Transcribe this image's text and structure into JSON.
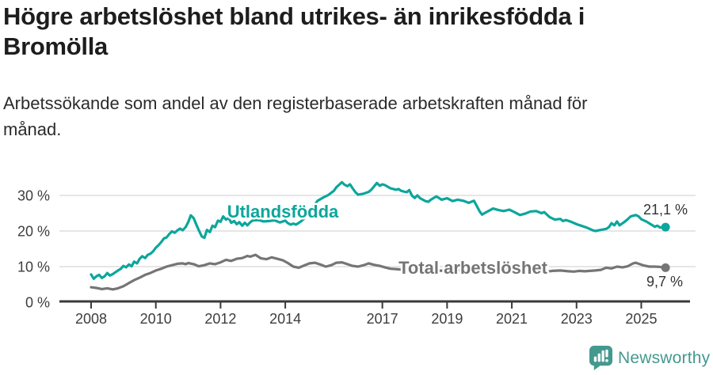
{
  "header": {
    "title": "Högre arbetslöshet bland utrikes- än inrikesfödda i Bromölla",
    "subtitle": "Arbetssökande som andel av den registerbaserade arbetskraften månad för månad."
  },
  "branding": {
    "logo_text": "Newsworthy",
    "logo_color": "#44998f",
    "logo_icon": "speech-bubble-bar-chart-icon"
  },
  "colors": {
    "foreign_born_line": "#0ca69c",
    "total_line": "#757575",
    "gridline": "#d8d8d8",
    "axis": "#3a3a3a",
    "text_dark": "#1d1d1d"
  },
  "chart_data": {
    "type": "line",
    "title": "Högre arbetslöshet bland utrikes- än inrikesfödda i Bromölla",
    "xlabel": "",
    "ylabel": "",
    "unit": "%",
    "grid": "horizontal",
    "legend_position": "inline-labels",
    "xlim": [
      2007.6,
      2026.5
    ],
    "ylim": [
      0,
      35
    ],
    "x_ticks": [
      2008,
      2010,
      2012,
      2014,
      2017,
      2019,
      2021,
      2023,
      2025
    ],
    "x_tick_labels": [
      "2008",
      "2010",
      "2012",
      "2014",
      "2017",
      "2019",
      "2021",
      "2023",
      "2025"
    ],
    "y_ticks": [
      0,
      10,
      20,
      30
    ],
    "y_tick_labels": [
      "0 %",
      "10 %",
      "20 %",
      "30 %"
    ],
    "series": [
      {
        "name": "Utlandsfödda",
        "color": "#0ca69c",
        "end_value": 21.1,
        "end_label": "21,1 %",
        "points": [
          [
            2008.0,
            7.8
          ],
          [
            2008.08,
            6.6
          ],
          [
            2008.17,
            7.3
          ],
          [
            2008.25,
            7.7
          ],
          [
            2008.33,
            6.8
          ],
          [
            2008.42,
            7.3
          ],
          [
            2008.5,
            8.2
          ],
          [
            2008.58,
            7.5
          ],
          [
            2008.67,
            7.9
          ],
          [
            2008.75,
            8.4
          ],
          [
            2008.83,
            8.9
          ],
          [
            2008.92,
            9.4
          ],
          [
            2009.0,
            10.2
          ],
          [
            2009.08,
            9.8
          ],
          [
            2009.17,
            10.6
          ],
          [
            2009.25,
            10.1
          ],
          [
            2009.33,
            11.4
          ],
          [
            2009.42,
            10.9
          ],
          [
            2009.5,
            12.2
          ],
          [
            2009.58,
            12.9
          ],
          [
            2009.67,
            12.4
          ],
          [
            2009.75,
            13.3
          ],
          [
            2009.83,
            13.6
          ],
          [
            2009.92,
            14.3
          ],
          [
            2010.0,
            15.3
          ],
          [
            2010.08,
            16.0
          ],
          [
            2010.17,
            16.9
          ],
          [
            2010.25,
            17.9
          ],
          [
            2010.33,
            18.2
          ],
          [
            2010.42,
            19.2
          ],
          [
            2010.5,
            19.9
          ],
          [
            2010.58,
            19.5
          ],
          [
            2010.67,
            20.2
          ],
          [
            2010.75,
            20.7
          ],
          [
            2010.83,
            20.2
          ],
          [
            2010.92,
            21.1
          ],
          [
            2011.0,
            22.5
          ],
          [
            2011.08,
            24.4
          ],
          [
            2011.17,
            23.6
          ],
          [
            2011.25,
            21.8
          ],
          [
            2011.33,
            20.2
          ],
          [
            2011.42,
            18.5
          ],
          [
            2011.5,
            18.1
          ],
          [
            2011.58,
            20.3
          ],
          [
            2011.67,
            19.7
          ],
          [
            2011.75,
            21.5
          ],
          [
            2011.83,
            21.1
          ],
          [
            2011.92,
            22.9
          ],
          [
            2012.0,
            22.6
          ],
          [
            2012.08,
            24.1
          ],
          [
            2012.17,
            23.2
          ],
          [
            2012.25,
            23.7
          ],
          [
            2012.33,
            22.3
          ],
          [
            2012.42,
            22.8
          ],
          [
            2012.5,
            21.9
          ],
          [
            2012.58,
            22.5
          ],
          [
            2012.67,
            21.5
          ],
          [
            2012.75,
            22.3
          ],
          [
            2012.83,
            21.6
          ],
          [
            2012.92,
            22.5
          ],
          [
            2013.0,
            23.0
          ],
          [
            2013.17,
            23.1
          ],
          [
            2013.33,
            22.7
          ],
          [
            2013.5,
            22.8
          ],
          [
            2013.67,
            23.0
          ],
          [
            2013.83,
            22.4
          ],
          [
            2014.0,
            22.9
          ],
          [
            2014.08,
            22.2
          ],
          [
            2014.17,
            21.8
          ],
          [
            2014.25,
            22.1
          ],
          [
            2014.33,
            21.8
          ],
          [
            2014.42,
            22.3
          ],
          [
            2014.5,
            22.8
          ],
          [
            2014.67,
            24.3
          ],
          [
            2014.83,
            26.5
          ],
          [
            2015.0,
            28.5
          ],
          [
            2015.17,
            29.4
          ],
          [
            2015.33,
            30.1
          ],
          [
            2015.5,
            31.3
          ],
          [
            2015.58,
            32.3
          ],
          [
            2015.75,
            33.7
          ],
          [
            2015.83,
            33.0
          ],
          [
            2015.92,
            32.6
          ],
          [
            2016.0,
            33.1
          ],
          [
            2016.08,
            32.0
          ],
          [
            2016.17,
            30.9
          ],
          [
            2016.25,
            30.2
          ],
          [
            2016.42,
            30.5
          ],
          [
            2016.58,
            31.0
          ],
          [
            2016.67,
            31.7
          ],
          [
            2016.83,
            33.5
          ],
          [
            2016.92,
            32.7
          ],
          [
            2017.0,
            33.1
          ],
          [
            2017.08,
            32.9
          ],
          [
            2017.25,
            32.0
          ],
          [
            2017.42,
            31.6
          ],
          [
            2017.5,
            31.8
          ],
          [
            2017.58,
            31.3
          ],
          [
            2017.75,
            30.9
          ],
          [
            2017.83,
            31.5
          ],
          [
            2017.92,
            29.9
          ],
          [
            2018.0,
            29.3
          ],
          [
            2018.08,
            30.0
          ],
          [
            2018.17,
            29.2
          ],
          [
            2018.33,
            28.4
          ],
          [
            2018.42,
            28.2
          ],
          [
            2018.5,
            28.8
          ],
          [
            2018.67,
            29.7
          ],
          [
            2018.83,
            28.8
          ],
          [
            2019.0,
            29.2
          ],
          [
            2019.17,
            28.4
          ],
          [
            2019.33,
            28.8
          ],
          [
            2019.5,
            28.5
          ],
          [
            2019.67,
            27.9
          ],
          [
            2019.83,
            28.5
          ],
          [
            2019.92,
            27.0
          ],
          [
            2020.0,
            25.6
          ],
          [
            2020.08,
            24.6
          ],
          [
            2020.25,
            25.5
          ],
          [
            2020.42,
            26.3
          ],
          [
            2020.58,
            25.9
          ],
          [
            2020.75,
            25.6
          ],
          [
            2020.92,
            26.0
          ],
          [
            2021.08,
            25.3
          ],
          [
            2021.25,
            24.5
          ],
          [
            2021.42,
            24.9
          ],
          [
            2021.58,
            25.5
          ],
          [
            2021.75,
            25.6
          ],
          [
            2021.92,
            25.0
          ],
          [
            2022.0,
            25.3
          ],
          [
            2022.17,
            23.9
          ],
          [
            2022.33,
            23.2
          ],
          [
            2022.5,
            23.4
          ],
          [
            2022.58,
            22.8
          ],
          [
            2022.67,
            23.1
          ],
          [
            2022.83,
            22.6
          ],
          [
            2023.0,
            21.9
          ],
          [
            2023.17,
            21.4
          ],
          [
            2023.33,
            20.9
          ],
          [
            2023.5,
            20.2
          ],
          [
            2023.58,
            20.0
          ],
          [
            2023.75,
            20.3
          ],
          [
            2023.92,
            20.6
          ],
          [
            2024.0,
            21.1
          ],
          [
            2024.08,
            22.2
          ],
          [
            2024.17,
            21.6
          ],
          [
            2024.25,
            22.7
          ],
          [
            2024.33,
            21.6
          ],
          [
            2024.5,
            22.7
          ],
          [
            2024.58,
            23.3
          ],
          [
            2024.67,
            24.1
          ],
          [
            2024.83,
            24.5
          ],
          [
            2024.92,
            24.1
          ],
          [
            2025.0,
            23.3
          ],
          [
            2025.17,
            22.6
          ],
          [
            2025.33,
            21.7
          ],
          [
            2025.42,
            21.2
          ],
          [
            2025.5,
            21.5
          ],
          [
            2025.58,
            21.0
          ],
          [
            2025.75,
            21.1
          ]
        ]
      },
      {
        "name": "Total arbetslöshet",
        "color": "#757575",
        "end_value": 9.7,
        "end_label": "9,7 %",
        "points": [
          [
            2008.0,
            4.2
          ],
          [
            2008.17,
            4.0
          ],
          [
            2008.33,
            3.7
          ],
          [
            2008.5,
            3.9
          ],
          [
            2008.67,
            3.6
          ],
          [
            2008.83,
            3.9
          ],
          [
            2009.0,
            4.5
          ],
          [
            2009.17,
            5.4
          ],
          [
            2009.33,
            6.2
          ],
          [
            2009.5,
            6.9
          ],
          [
            2009.67,
            7.7
          ],
          [
            2009.83,
            8.2
          ],
          [
            2010.0,
            8.9
          ],
          [
            2010.17,
            9.4
          ],
          [
            2010.33,
            10.0
          ],
          [
            2010.5,
            10.4
          ],
          [
            2010.67,
            10.8
          ],
          [
            2010.83,
            10.9
          ],
          [
            2010.92,
            10.7
          ],
          [
            2011.0,
            11.0
          ],
          [
            2011.17,
            10.7
          ],
          [
            2011.33,
            10.1
          ],
          [
            2011.5,
            10.4
          ],
          [
            2011.67,
            10.9
          ],
          [
            2011.83,
            10.7
          ],
          [
            2012.0,
            11.2
          ],
          [
            2012.17,
            11.9
          ],
          [
            2012.33,
            11.6
          ],
          [
            2012.5,
            12.2
          ],
          [
            2012.67,
            12.4
          ],
          [
            2012.83,
            13.0
          ],
          [
            2012.92,
            12.8
          ],
          [
            2013.08,
            13.3
          ],
          [
            2013.25,
            12.3
          ],
          [
            2013.42,
            12.1
          ],
          [
            2013.58,
            12.6
          ],
          [
            2013.75,
            12.2
          ],
          [
            2013.92,
            11.8
          ],
          [
            2014.08,
            11.0
          ],
          [
            2014.25,
            10.0
          ],
          [
            2014.42,
            9.7
          ],
          [
            2014.58,
            10.3
          ],
          [
            2014.75,
            10.9
          ],
          [
            2014.92,
            11.1
          ],
          [
            2015.08,
            10.6
          ],
          [
            2015.25,
            10.0
          ],
          [
            2015.42,
            10.4
          ],
          [
            2015.58,
            11.1
          ],
          [
            2015.75,
            11.2
          ],
          [
            2015.92,
            10.7
          ],
          [
            2016.08,
            10.2
          ],
          [
            2016.25,
            10.0
          ],
          [
            2016.42,
            10.4
          ],
          [
            2016.58,
            10.9
          ],
          [
            2016.75,
            10.5
          ],
          [
            2016.92,
            10.2
          ],
          [
            2017.08,
            9.8
          ],
          [
            2017.25,
            9.4
          ],
          [
            2017.42,
            9.3
          ],
          [
            2017.67,
            9.1
          ],
          [
            2017.92,
            9.0
          ],
          [
            2018.17,
            8.9
          ],
          [
            2018.42,
            9.0
          ],
          [
            2018.67,
            8.9
          ],
          [
            2018.92,
            8.8
          ],
          [
            2019.17,
            8.9
          ],
          [
            2019.42,
            9.0
          ],
          [
            2019.67,
            9.2
          ],
          [
            2019.92,
            9.5
          ],
          [
            2020.08,
            9.8
          ],
          [
            2020.33,
            10.0
          ],
          [
            2020.58,
            9.7
          ],
          [
            2020.83,
            9.4
          ],
          [
            2021.08,
            9.0
          ],
          [
            2021.33,
            8.8
          ],
          [
            2021.58,
            8.7
          ],
          [
            2021.83,
            8.7
          ],
          [
            2022.08,
            8.6
          ],
          [
            2022.25,
            8.8
          ],
          [
            2022.5,
            8.9
          ],
          [
            2022.75,
            8.7
          ],
          [
            2022.92,
            8.6
          ],
          [
            2023.08,
            8.8
          ],
          [
            2023.25,
            8.7
          ],
          [
            2023.42,
            8.8
          ],
          [
            2023.58,
            8.9
          ],
          [
            2023.75,
            9.1
          ],
          [
            2023.92,
            9.7
          ],
          [
            2024.08,
            9.5
          ],
          [
            2024.25,
            10.0
          ],
          [
            2024.42,
            9.8
          ],
          [
            2024.58,
            10.1
          ],
          [
            2024.75,
            10.9
          ],
          [
            2024.83,
            11.1
          ],
          [
            2024.92,
            10.8
          ],
          [
            2025.08,
            10.3
          ],
          [
            2025.25,
            10.0
          ],
          [
            2025.42,
            10.0
          ],
          [
            2025.58,
            9.9
          ],
          [
            2025.75,
            9.7
          ]
        ]
      }
    ]
  }
}
